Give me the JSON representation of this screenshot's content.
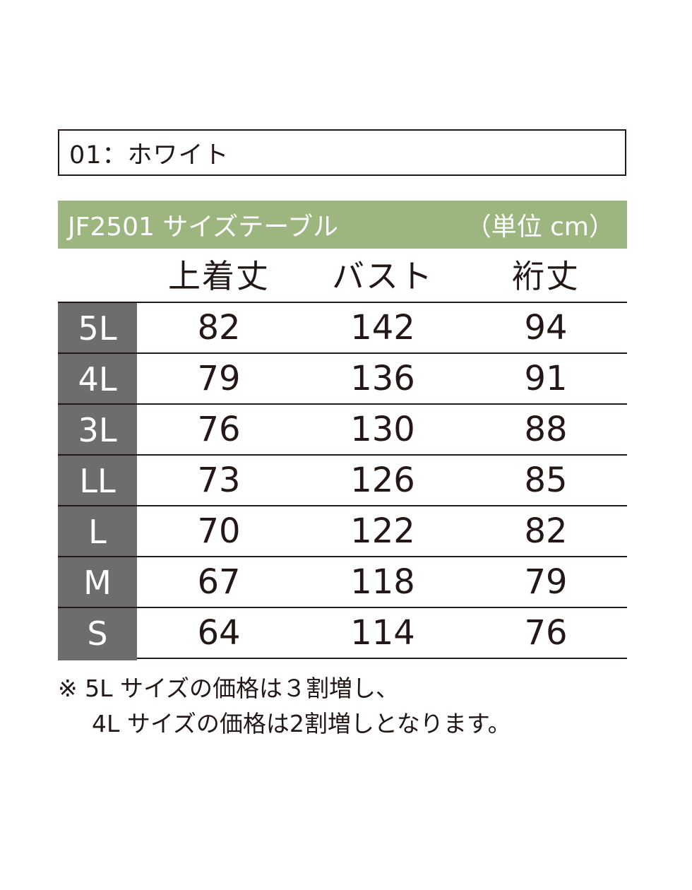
{
  "color_label": "01：ホワイト",
  "title": {
    "left": "JF2501 サイズテーブル",
    "right": "（単位 cm）"
  },
  "colors": {
    "title_bg": "#9db680",
    "size_bg": "#6d6d6d"
  },
  "columns": [
    "上着丈",
    "バスト",
    "裄丈"
  ],
  "rows": [
    {
      "size": "5L",
      "values": [
        "82",
        "142",
        "94"
      ]
    },
    {
      "size": "4L",
      "values": [
        "79",
        "136",
        "91"
      ]
    },
    {
      "size": "3L",
      "values": [
        "76",
        "130",
        "88"
      ]
    },
    {
      "size": "LL",
      "values": [
        "73",
        "126",
        "85"
      ]
    },
    {
      "size": "L",
      "values": [
        "70",
        "122",
        "82"
      ]
    },
    {
      "size": "M",
      "values": [
        "67",
        "118",
        "79"
      ]
    },
    {
      "size": "S",
      "values": [
        "64",
        "114",
        "76"
      ]
    }
  ],
  "note": {
    "line1": "※ 5L サイズの価格は３割増し、",
    "line2": "4L サイズの価格は2割増しとなります。"
  }
}
